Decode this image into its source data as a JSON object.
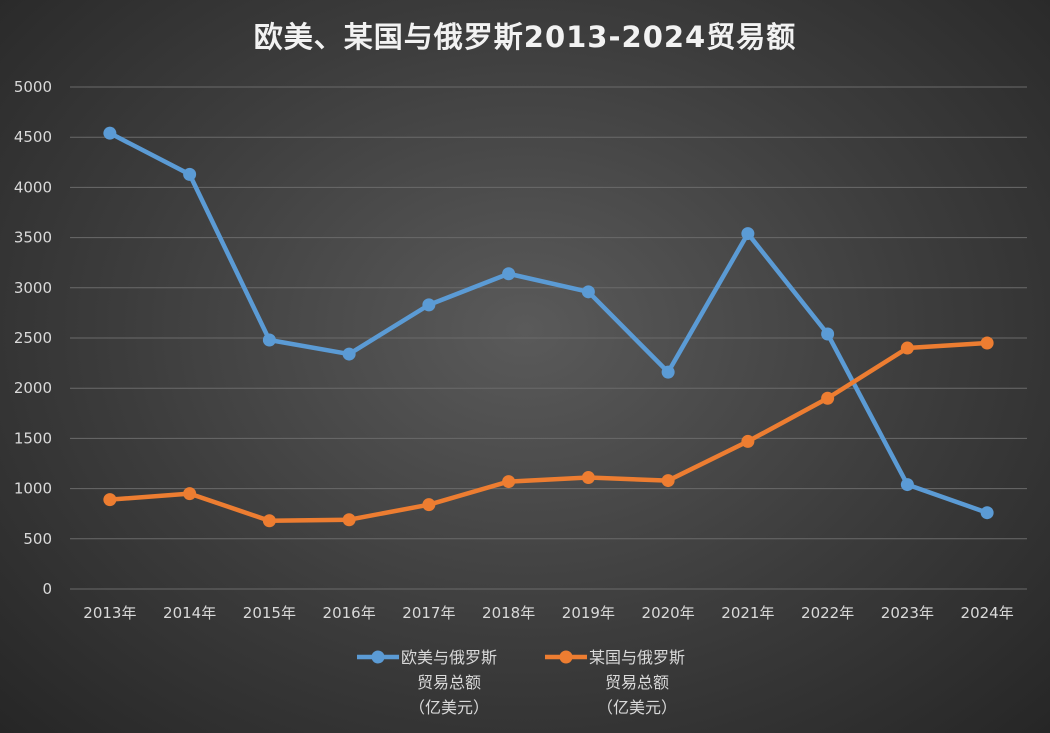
{
  "chart_data": {
    "type": "line",
    "title": "欧美、某国与俄罗斯2013-2024贸易额",
    "xlabel": "",
    "ylabel": "",
    "categories": [
      "2013年",
      "2014年",
      "2015年",
      "2016年",
      "2017年",
      "2018年",
      "2019年",
      "2020年",
      "2021年",
      "2022年",
      "2023年",
      "2024年"
    ],
    "ylim": [
      0,
      5000
    ],
    "yticks": [
      0,
      500,
      1000,
      1500,
      2000,
      2500,
      3000,
      3500,
      4000,
      4500,
      5000
    ],
    "grid": true,
    "legend_position": "bottom",
    "series": [
      {
        "name": "欧美与俄罗斯贸易总额（亿美元）",
        "legend_lines": [
          "欧美与俄罗斯",
          "贸易总额",
          "（亿美元）"
        ],
        "color": "#5b9bd5",
        "values": [
          4540,
          4130,
          2480,
          2340,
          2830,
          3140,
          2960,
          2160,
          3540,
          2540,
          1040,
          760
        ]
      },
      {
        "name": "某国与俄罗斯贸易总额（亿美元）",
        "legend_lines": [
          "某国与俄罗斯",
          "贸易总额",
          "（亿美元）"
        ],
        "color": "#ed7d31",
        "values": [
          890,
          950,
          680,
          690,
          840,
          1070,
          1110,
          1080,
          1470,
          1900,
          2400,
          2450
        ]
      }
    ]
  },
  "colors": {
    "grid": "#6a6a6a",
    "text": "#d9d9d9",
    "title": "#f2f2f2"
  }
}
